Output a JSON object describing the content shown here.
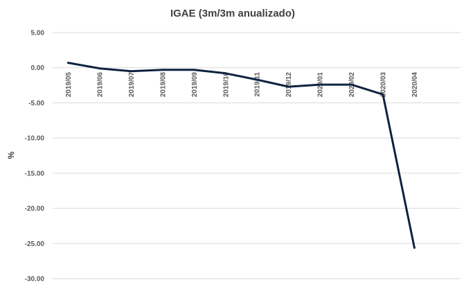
{
  "chart_data": {
    "type": "line",
    "title": "IGAE (3m/3m anualizado)",
    "xlabel": "",
    "ylabel": "%",
    "categories": [
      "2019/05",
      "2019/06",
      "2019/07",
      "2019/08",
      "2019/09",
      "2019/10",
      "2019/11",
      "2019/12",
      "2020/01",
      "2020/02",
      "2020/03",
      "2020/04"
    ],
    "series": [
      {
        "values": [
          0.7,
          -0.1,
          -0.5,
          -0.3,
          -0.3,
          -0.8,
          -1.7,
          -2.7,
          -2.4,
          -2.4,
          -3.8,
          -25.6
        ]
      }
    ],
    "y_ticks": [
      "5.00",
      "0.00",
      "-5.00",
      "-10.00",
      "-15.00",
      "-20.00",
      "-25.00",
      "-30.00"
    ],
    "ylim": [
      -30,
      5
    ],
    "grid": true,
    "legend": "none",
    "colors": {
      "line": "#0d2240",
      "grid": "#d9d9d9",
      "text": "#595959"
    }
  }
}
